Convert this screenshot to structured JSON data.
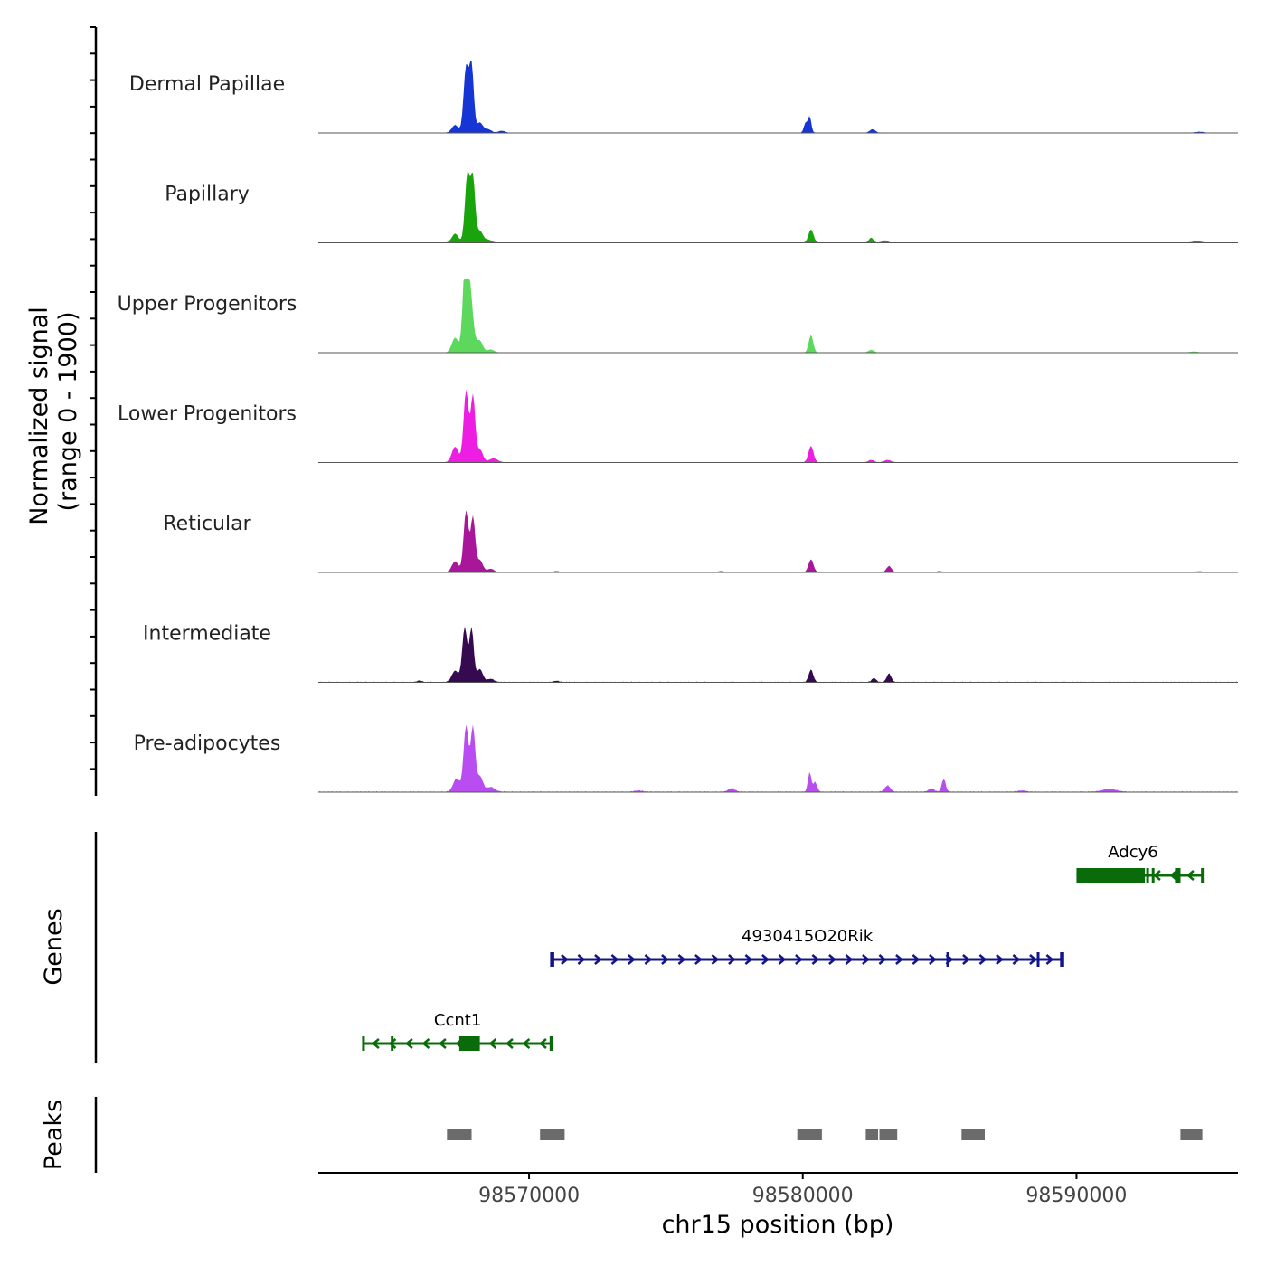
{
  "chart_data": {
    "type": "area",
    "title": "",
    "chromosome": "chr15",
    "xlabel": "chr15 position (bp)",
    "xlim": [
      98562300,
      98595900
    ],
    "xticks": [
      98570000,
      98580000,
      98590000
    ],
    "xtick_labels": [
      "98570000",
      "98580000",
      "98590000"
    ],
    "coverage": {
      "ylabel_line1": "Normalized signal",
      "ylabel_line2": "(range 0 - 1900)",
      "ylim": [
        0,
        1900
      ],
      "tracks": [
        {
          "name": "Dermal Papillae",
          "color": "#1535d4",
          "peaks": [
            [
              98567700,
              1680,
              90
            ],
            [
              98567900,
              1700,
              80
            ],
            [
              98567300,
              200,
              120
            ],
            [
              98568200,
              260,
              110
            ],
            [
              98568500,
              90,
              120
            ],
            [
              98569000,
              50,
              120
            ],
            [
              98580250,
              420,
              60
            ],
            [
              98580100,
              250,
              60
            ],
            [
              98582550,
              90,
              100
            ],
            [
              98594500,
              25,
              150
            ]
          ],
          "background": 12
        },
        {
          "name": "Papillary",
          "color": "#18a40a",
          "peaks": [
            [
              98567750,
              1760,
              90
            ],
            [
              98567950,
              1620,
              80
            ],
            [
              98567300,
              230,
              120
            ],
            [
              98568200,
              300,
              110
            ],
            [
              98568500,
              80,
              120
            ],
            [
              98580300,
              340,
              90
            ],
            [
              98582500,
              130,
              80
            ],
            [
              98583000,
              60,
              100
            ],
            [
              98594400,
              40,
              150
            ]
          ],
          "background": 10
        },
        {
          "name": "Upper Progenitors",
          "color": "#5cd95c",
          "peaks": [
            [
              98567800,
              1900,
              130
            ],
            [
              98567650,
              1450,
              80
            ],
            [
              98567300,
              380,
              120
            ],
            [
              98568200,
              300,
              110
            ],
            [
              98568600,
              80,
              120
            ],
            [
              98580300,
              450,
              80
            ],
            [
              98582500,
              70,
              100
            ],
            [
              98594300,
              25,
              150
            ]
          ],
          "background": 8
        },
        {
          "name": "Lower Progenitors",
          "color": "#ee1de2",
          "peaks": [
            [
              98567700,
              1850,
              90
            ],
            [
              98567950,
              1700,
              80
            ],
            [
              98567300,
              400,
              120
            ],
            [
              98568200,
              330,
              110
            ],
            [
              98568700,
              100,
              150
            ],
            [
              98580300,
              420,
              90
            ],
            [
              98582500,
              60,
              100
            ],
            [
              98583100,
              60,
              120
            ]
          ],
          "background": 15
        },
        {
          "name": "Reticular",
          "color": "#a8169a",
          "peaks": [
            [
              98567700,
              1580,
              90
            ],
            [
              98567950,
              1400,
              80
            ],
            [
              98567300,
              280,
              120
            ],
            [
              98568200,
              310,
              110
            ],
            [
              98568600,
              90,
              120
            ],
            [
              98580300,
              330,
              90
            ],
            [
              98583150,
              160,
              90
            ],
            [
              98571000,
              30,
              100
            ],
            [
              98577000,
              30,
              100
            ],
            [
              98585000,
              30,
              100
            ],
            [
              98594500,
              25,
              150
            ]
          ],
          "background": 12
        },
        {
          "name": "Intermediate",
          "color": "#360a50",
          "peaks": [
            [
              98567650,
              1400,
              90
            ],
            [
              98567900,
              1370,
              80
            ],
            [
              98567300,
              290,
              120
            ],
            [
              98568200,
              330,
              110
            ],
            [
              98568600,
              80,
              120
            ],
            [
              98580300,
              320,
              80
            ],
            [
              98583150,
              220,
              80
            ],
            [
              98582600,
              100,
              80
            ],
            [
              98566000,
              40,
              80
            ],
            [
              98571000,
              30,
              100
            ]
          ],
          "background": 20
        },
        {
          "name": "Pre-adipocytes",
          "color": "#b94df2",
          "peaks": [
            [
              98567700,
              1700,
              90
            ],
            [
              98567950,
              1650,
              80
            ],
            [
              98567350,
              340,
              120
            ],
            [
              98568200,
              400,
              110
            ],
            [
              98568600,
              120,
              150
            ],
            [
              98580250,
              500,
              60
            ],
            [
              98580450,
              250,
              70
            ],
            [
              98583100,
              160,
              100
            ],
            [
              98585150,
              330,
              70
            ],
            [
              98584700,
              90,
              100
            ],
            [
              98577400,
              90,
              120
            ],
            [
              98591200,
              70,
              250
            ],
            [
              98574000,
              30,
              150
            ],
            [
              98588000,
              30,
              150
            ]
          ],
          "background": 25
        }
      ]
    },
    "genes": {
      "ylabel": "Genes",
      "items": [
        {
          "name": "Adcy6",
          "strand": "-",
          "color": "#0a6b0a",
          "start": 98590050,
          "end": 98594600,
          "exons": [
            [
              98590050,
              98592500
            ],
            [
              98592550,
              98592620
            ],
            [
              98592750,
              98592820
            ],
            [
              98593600,
              98593800
            ]
          ]
        },
        {
          "name": "4930415O20Rik",
          "strand": "+",
          "color": "#14148a",
          "start": 98570820,
          "end": 98589500,
          "exons": [
            [
              98570820,
              98570900
            ],
            [
              98585250,
              98585330
            ],
            [
              98588550,
              98588620
            ],
            [
              98589400,
              98589500
            ]
          ]
        },
        {
          "name": "Ccnt1",
          "strand": "-",
          "color": "#0a6b0a",
          "start": 98563950,
          "end": 98570830,
          "exons": [
            [
              98564950,
              98565020
            ],
            [
              98567450,
              98568200
            ],
            [
              98570750,
              98570830
            ]
          ]
        }
      ]
    },
    "peaks": {
      "ylabel": "Peaks",
      "color": "#6b6b6b",
      "regions": [
        [
          98567000,
          98567900
        ],
        [
          98570400,
          98571300
        ],
        [
          98579800,
          98580700
        ],
        [
          98582300,
          98582750
        ],
        [
          98582800,
          98583450
        ],
        [
          98585800,
          98586650
        ],
        [
          98593800,
          98594600
        ]
      ]
    }
  }
}
